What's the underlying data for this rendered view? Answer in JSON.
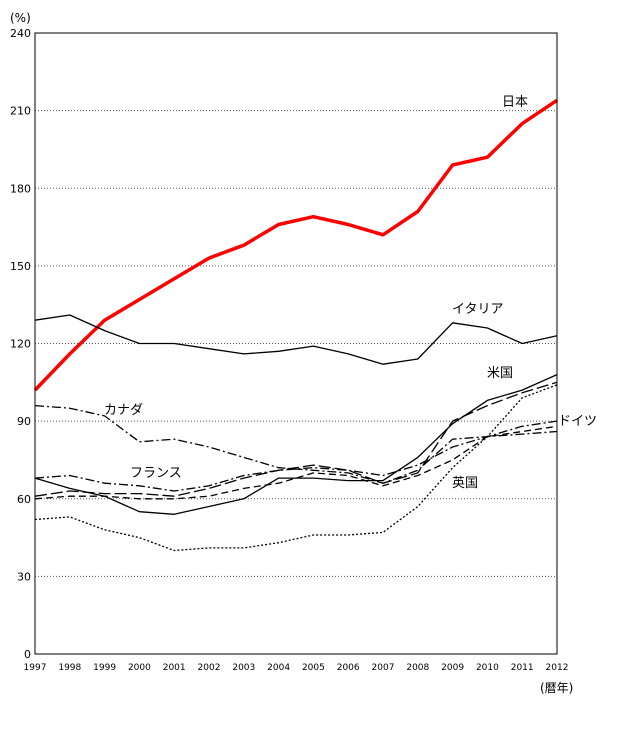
{
  "chart_data": {
    "type": "line",
    "y_unit": "(%)",
    "x_unit": "(暦年)",
    "ylim": [
      0,
      240
    ],
    "yticks": [
      0,
      30,
      60,
      90,
      120,
      150,
      180,
      210,
      240
    ],
    "grid": "horizontal dotted",
    "x": [
      "1997",
      "1998",
      "1999",
      "2000",
      "2001",
      "2002",
      "2003",
      "2004",
      "2005",
      "2006",
      "2007",
      "2008",
      "2009",
      "2010",
      "2011",
      "2012"
    ],
    "series": [
      {
        "name": "日本",
        "color": "#ff0000",
        "style": "solid-thick",
        "values": [
          102,
          116,
          129,
          137,
          145,
          153,
          158,
          166,
          169,
          166,
          162,
          171,
          189,
          192,
          205,
          214
        ]
      },
      {
        "name": "イタリア",
        "color": "#000000",
        "style": "solid",
        "values": [
          129,
          131,
          125,
          120,
          120,
          118,
          116,
          117,
          119,
          116,
          112,
          114,
          128,
          126,
          120,
          123
        ]
      },
      {
        "name": "米国",
        "color": "#000000",
        "style": "solid",
        "values": [
          68,
          64,
          61,
          55,
          54,
          57,
          60,
          68,
          68,
          67,
          67,
          76,
          89,
          98,
          102,
          108
        ]
      },
      {
        "name": "カナダ",
        "color": "#000000",
        "style": "dashdot",
        "values": [
          96,
          95,
          92,
          82,
          83,
          80,
          76,
          72,
          71,
          70,
          66,
          71,
          83,
          84,
          85,
          86
        ]
      },
      {
        "name": "フランス",
        "color": "#000000",
        "style": "dashdot",
        "values": [
          68,
          69,
          66,
          65,
          63,
          65,
          69,
          71,
          72,
          71,
          69,
          73,
          80,
          84,
          88,
          90
        ]
      },
      {
        "name": "ドイツ",
        "color": "#000000",
        "style": "dashed",
        "values": [
          60,
          61,
          61,
          60,
          60,
          61,
          64,
          66,
          70,
          69,
          65,
          69,
          75,
          84,
          86,
          88
        ]
      },
      {
        "name": "",
        "color": "#000000",
        "style": "longdash",
        "values": [
          61,
          63,
          62,
          62,
          61,
          64,
          68,
          71,
          73,
          71,
          66,
          70,
          90,
          96,
          101,
          105
        ]
      },
      {
        "name": "英国",
        "color": "#000000",
        "style": "dotted",
        "values": [
          52,
          53,
          48,
          45,
          40,
          41,
          41,
          43,
          46,
          46,
          47,
          57,
          72,
          84,
          99,
          104
        ]
      }
    ]
  }
}
